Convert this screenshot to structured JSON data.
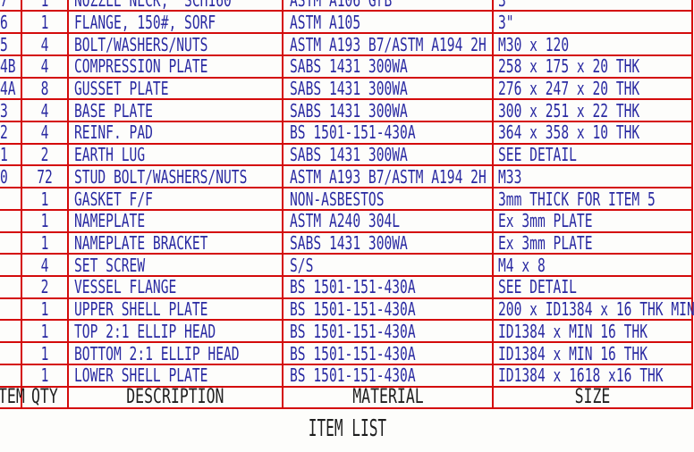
{
  "title": "ITEM LIST",
  "colors": {
    "grid_line": "#d40b0b",
    "body_text": "#2a2aa2",
    "header_text": "#1f1f1f",
    "background": "#fdfdfb"
  },
  "table": {
    "headers": {
      "item": "TEM",
      "qty": "QTY",
      "description": "DESCRIPTION",
      "material": "MATERIAL",
      "size": "SIZE"
    },
    "rows": [
      {
        "item_fragment": "7",
        "qty": "1",
        "description": "NOZZLE NECK,  SCH160",
        "material": "ASTM A106 GrB",
        "size": "3"
      },
      {
        "item_fragment": "6",
        "qty": "1",
        "description": "FLANGE, 150#, SORF",
        "material": "ASTM A105",
        "size": "3\""
      },
      {
        "item_fragment": "5",
        "qty": "4",
        "description": "BOLT/WASHERS/NUTS",
        "material": "ASTM A193 B7/ASTM A194 2H",
        "size": "M30 x 120"
      },
      {
        "item_fragment": "4B",
        "qty": "4",
        "description": "COMPRESSION PLATE",
        "material": "SABS 1431 300WA",
        "size": "258 x 175 x 20 THK"
      },
      {
        "item_fragment": "4A",
        "qty": "8",
        "description": "GUSSET PLATE",
        "material": "SABS 1431 300WA",
        "size": "276 x 247 x 20 THK"
      },
      {
        "item_fragment": "3",
        "qty": "4",
        "description": "BASE PLATE",
        "material": "SABS 1431 300WA",
        "size": "300 x 251 x 22 THK"
      },
      {
        "item_fragment": "2",
        "qty": "4",
        "description": "REINF. PAD",
        "material": "BS 1501-151-430A",
        "size": "364 x 358 x 10 THK"
      },
      {
        "item_fragment": "1",
        "qty": "2",
        "description": "EARTH LUG",
        "material": "SABS 1431 300WA",
        "size": "SEE DETAIL"
      },
      {
        "item_fragment": "0",
        "qty": "72",
        "description": "STUD BOLT/WASHERS/NUTS",
        "material": "ASTM A193 B7/ASTM A194 2H",
        "size": "M33"
      },
      {
        "item_fragment": "",
        "qty": "1",
        "description": "GASKET F/F",
        "material": "NON-ASBESTOS",
        "size": "3mm THICK FOR ITEM 5"
      },
      {
        "item_fragment": "",
        "qty": "1",
        "description": "NAMEPLATE",
        "material": "ASTM A240 304L",
        "size": "Ex 3mm PLATE"
      },
      {
        "item_fragment": "",
        "qty": "1",
        "description": "NAMEPLATE BRACKET",
        "material": "SABS 1431 300WA",
        "size": "Ex 3mm PLATE"
      },
      {
        "item_fragment": "",
        "qty": "4",
        "description": "SET SCREW",
        "material": "S/S",
        "size": "M4 x 8"
      },
      {
        "item_fragment": "",
        "qty": "2",
        "description": "VESSEL FLANGE",
        "material": "BS 1501-151-430A",
        "size": "SEE DETAIL"
      },
      {
        "item_fragment": "",
        "qty": "1",
        "description": "UPPER SHELL PLATE",
        "material": "BS 1501-151-430A",
        "size": "200 x ID1384 x 16 THK MIN"
      },
      {
        "item_fragment": "",
        "qty": "1",
        "description": "TOP 2:1 ELLIP HEAD",
        "material": "BS 1501-151-430A",
        "size": "ID1384 x MIN 16 THK"
      },
      {
        "item_fragment": "",
        "qty": "1",
        "description": "BOTTOM 2:1 ELLIP HEAD",
        "material": "BS 1501-151-430A",
        "size": "ID1384 x MIN 16 THK"
      },
      {
        "item_fragment": "",
        "qty": "1",
        "description": "LOWER SHELL PLATE",
        "material": "BS 1501-151-430A",
        "size": "ID1384 x 1618 x16 THK"
      }
    ]
  }
}
